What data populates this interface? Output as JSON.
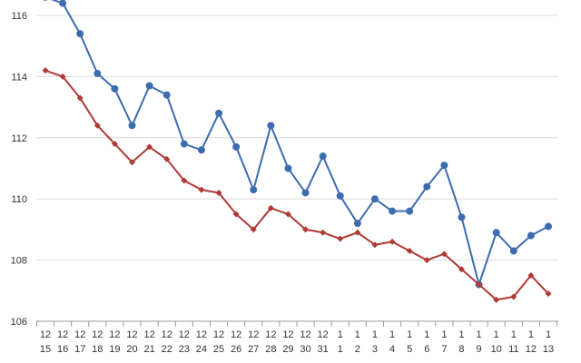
{
  "chart_data": {
    "type": "line",
    "title": "",
    "xlabel": "",
    "ylabel": "",
    "ylim": [
      106,
      116
    ],
    "yticks": [
      106,
      108,
      110,
      112,
      114,
      116
    ],
    "grid": true,
    "legend": "none",
    "categories": [
      [
        "12",
        "15"
      ],
      [
        "12",
        "16"
      ],
      [
        "12",
        "17"
      ],
      [
        "12",
        "18"
      ],
      [
        "12",
        "19"
      ],
      [
        "12",
        "20"
      ],
      [
        "12",
        "21"
      ],
      [
        "12",
        "22"
      ],
      [
        "12",
        "23"
      ],
      [
        "12",
        "24"
      ],
      [
        "12",
        "25"
      ],
      [
        "12",
        "26"
      ],
      [
        "12",
        "27"
      ],
      [
        "12",
        "28"
      ],
      [
        "12",
        "29"
      ],
      [
        "12",
        "30"
      ],
      [
        "12",
        "31"
      ],
      [
        "1",
        "1"
      ],
      [
        "1",
        "2"
      ],
      [
        "1",
        "3"
      ],
      [
        "1",
        "4"
      ],
      [
        "1",
        "5"
      ],
      [
        "1",
        "6"
      ],
      [
        "1",
        "7"
      ],
      [
        "1",
        "8"
      ],
      [
        "1",
        "9"
      ],
      [
        "1",
        "10"
      ],
      [
        "1",
        "11"
      ],
      [
        "1",
        "12"
      ],
      [
        "1",
        "13"
      ]
    ],
    "series": [
      {
        "color": "#3d6cb0",
        "marker": "circle",
        "values": [
          116.6,
          116.4,
          115.4,
          114.1,
          113.6,
          112.4,
          113.7,
          113.4,
          111.8,
          111.6,
          112.8,
          111.7,
          110.3,
          112.4,
          111.0,
          110.2,
          111.4,
          110.1,
          109.2,
          110.0,
          109.6,
          109.6,
          110.4,
          111.1,
          109.4,
          107.2,
          108.9,
          108.3,
          108.8,
          109.1
        ]
      },
      {
        "color": "#b03a36",
        "marker": "diamond",
        "values": [
          114.2,
          114.0,
          113.3,
          112.4,
          111.8,
          111.2,
          111.7,
          111.3,
          110.6,
          110.3,
          110.2,
          109.5,
          109.0,
          109.7,
          109.5,
          109.0,
          108.9,
          108.7,
          108.9,
          108.5,
          108.6,
          108.3,
          108.0,
          108.2,
          107.7,
          107.2,
          106.7,
          106.8,
          107.5,
          106.9
        ]
      }
    ]
  }
}
